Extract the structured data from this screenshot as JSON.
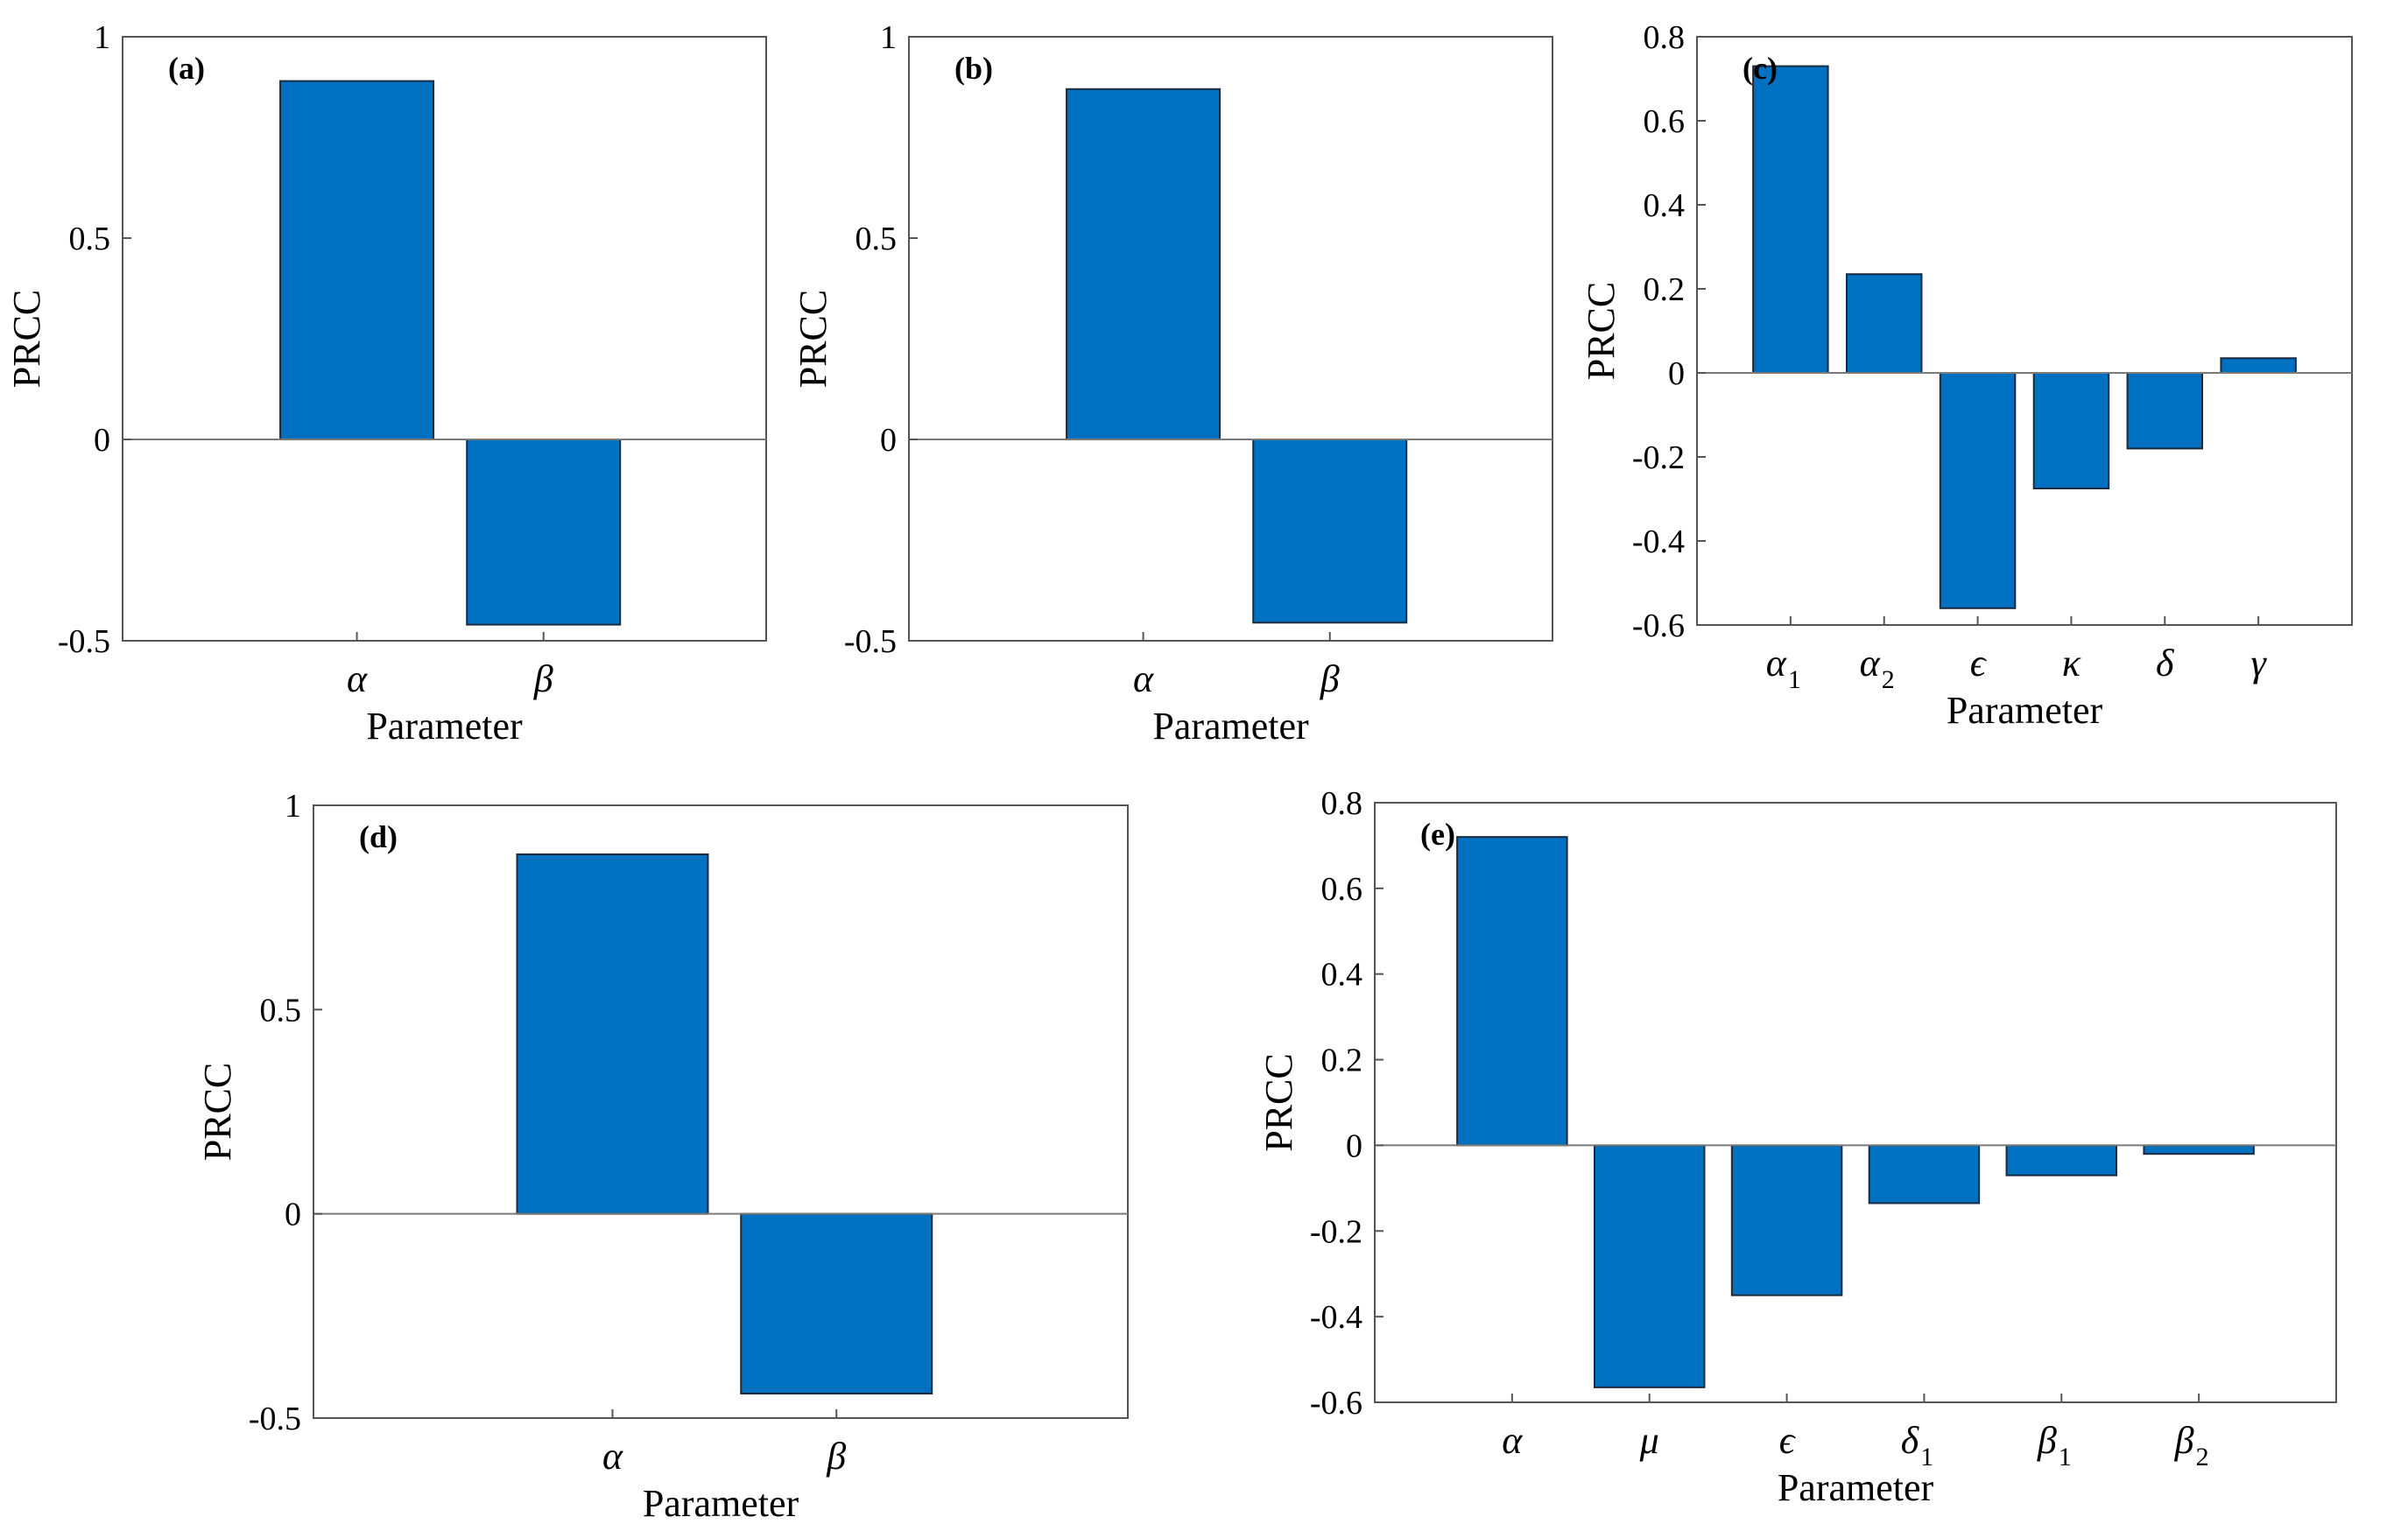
{
  "colors": {
    "bar": "#0070c0"
  },
  "chart_data": [
    {
      "type": "bar",
      "panel_label": "(a)",
      "categories": [
        "α",
        "β"
      ],
      "category_subscripts": [
        "",
        ""
      ],
      "values": [
        0.89,
        -0.46
      ],
      "ylim": [
        -0.5,
        1
      ],
      "yticks": [
        "-0.5",
        "0",
        "0.5",
        "1"
      ],
      "ytick_values": [
        -0.5,
        0,
        0.5,
        1
      ],
      "xlabel": "Parameter",
      "ylabel": "PRCC"
    },
    {
      "type": "bar",
      "panel_label": "(b)",
      "categories": [
        "α",
        "β"
      ],
      "category_subscripts": [
        "",
        ""
      ],
      "values": [
        0.87,
        -0.455
      ],
      "ylim": [
        -0.5,
        1
      ],
      "yticks": [
        "-0.5",
        "0",
        "0.5",
        "1"
      ],
      "ytick_values": [
        -0.5,
        0,
        0.5,
        1
      ],
      "xlabel": "Parameter",
      "ylabel": "PRCC"
    },
    {
      "type": "bar",
      "panel_label": "(c)",
      "categories": [
        "α",
        "α",
        "ϵ",
        "κ",
        "δ",
        "γ"
      ],
      "category_subscripts": [
        "1",
        "2",
        "",
        "",
        "",
        ""
      ],
      "values": [
        0.73,
        0.235,
        -0.56,
        -0.275,
        -0.18,
        0.035
      ],
      "ylim": [
        -0.6,
        0.8
      ],
      "yticks": [
        "-0.6",
        "-0.4",
        "-0.2",
        "0",
        "0.2",
        "0.4",
        "0.6",
        "0.8"
      ],
      "ytick_values": [
        -0.6,
        -0.4,
        -0.2,
        0,
        0.2,
        0.4,
        0.6,
        0.8
      ],
      "xlabel": "Parameter",
      "ylabel": "PRCC"
    },
    {
      "type": "bar",
      "panel_label": "(d)",
      "categories": [
        "α",
        "β"
      ],
      "category_subscripts": [
        "",
        ""
      ],
      "values": [
        0.88,
        -0.44
      ],
      "ylim": [
        -0.5,
        1
      ],
      "yticks": [
        "-0.5",
        "0",
        "0.5",
        "1"
      ],
      "ytick_values": [
        -0.5,
        0,
        0.5,
        1
      ],
      "xlabel": "Parameter",
      "ylabel": "PRCC"
    },
    {
      "type": "bar",
      "panel_label": "(e)",
      "categories": [
        "α",
        "μ",
        "ϵ",
        "δ",
        "β",
        "β"
      ],
      "category_subscripts": [
        "",
        "",
        "",
        "1",
        "1",
        "2"
      ],
      "values": [
        0.72,
        -0.565,
        -0.35,
        -0.135,
        -0.07,
        -0.02
      ],
      "ylim": [
        -0.6,
        0.8
      ],
      "yticks": [
        "-0.6",
        "-0.4",
        "-0.2",
        "0",
        "0.2",
        "0.4",
        "0.6",
        "0.8"
      ],
      "ytick_values": [
        -0.6,
        -0.4,
        -0.2,
        0,
        0.2,
        0.4,
        0.6,
        0.8
      ],
      "xlabel": "Parameter",
      "ylabel": "PRCC"
    }
  ]
}
